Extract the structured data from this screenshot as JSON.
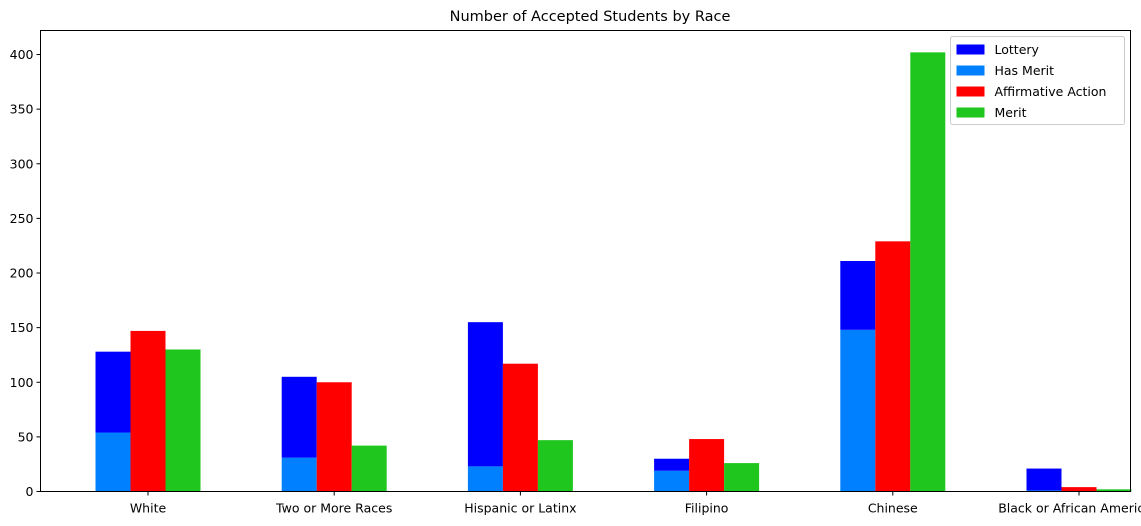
{
  "chart_data": {
    "type": "bar",
    "title": "Number of Accepted Students by Race",
    "xlabel": "",
    "ylabel": "",
    "categories": [
      "White",
      "Two or More Races",
      "Hispanic or Latinx",
      "Filipino",
      "Chinese",
      "Black or African American"
    ],
    "ylim": [
      0,
      422
    ],
    "yticks": [
      0,
      50,
      100,
      150,
      200,
      250,
      300,
      350,
      400
    ],
    "grid": false,
    "legend_position": "top-right",
    "series": [
      {
        "name": "Lottery",
        "color": "#0000ff",
        "group": "lottery",
        "stacked_on": "Has Merit",
        "values": [
          74,
          74,
          132,
          11,
          63,
          20
        ]
      },
      {
        "name": "Has Merit",
        "color": "#0080ff",
        "group": "lottery",
        "values": [
          54,
          31,
          23,
          19,
          148,
          1
        ]
      },
      {
        "name": "Affirmative Action",
        "color": "#ff0000",
        "group": "affirmative",
        "values": [
          147,
          100,
          117,
          48,
          229,
          4
        ]
      },
      {
        "name": "Merit",
        "color": "#1ec61e",
        "group": "merit",
        "values": [
          130,
          42,
          47,
          26,
          402,
          2
        ]
      }
    ]
  }
}
